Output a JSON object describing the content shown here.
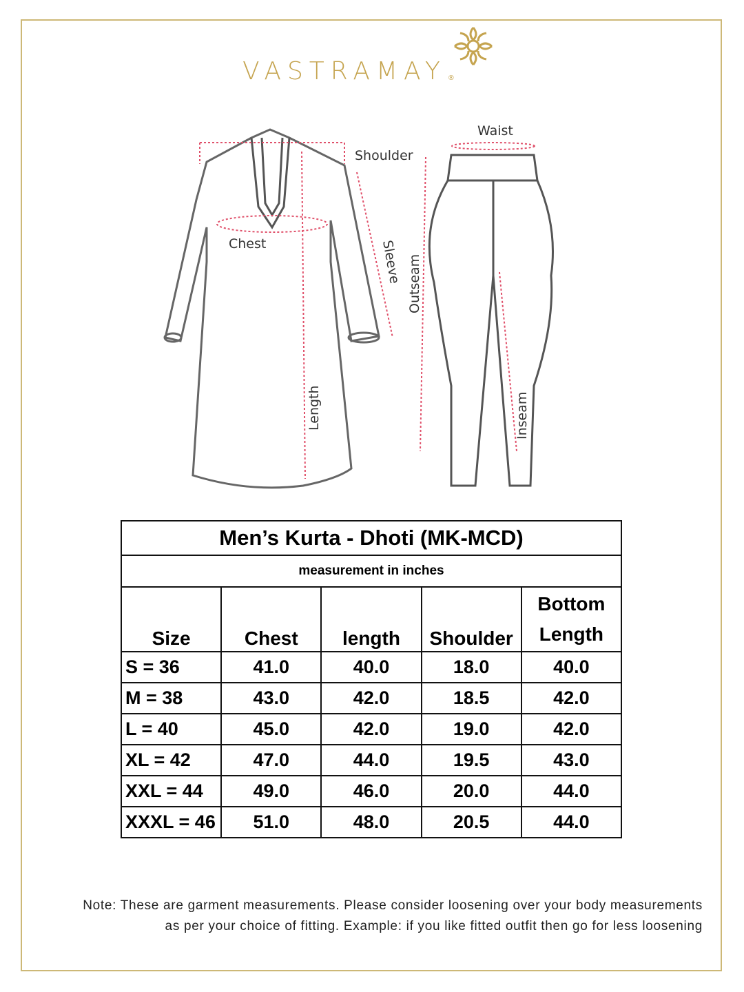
{
  "brand": {
    "name": "VASTRAMAY",
    "registered_mark": "®",
    "color": "#c5a44f"
  },
  "diagram": {
    "kurta_labels": {
      "shoulder": "Shoulder",
      "chest": "Chest",
      "sleeve": "Sleeve",
      "length": "Length"
    },
    "dhoti_labels": {
      "waist": "Waist",
      "outseam": "Outseam",
      "inseam": "Inseam"
    },
    "measure_line_color": "#e0506a"
  },
  "table": {
    "title": "Men’s Kurta - Dhoti (MK-MCD)",
    "subtitle": "measurement in inches",
    "headers": [
      "Size",
      "Chest",
      "length",
      "Shoulder",
      "Bottom Length"
    ],
    "rows": [
      [
        "S = 36",
        "41.0",
        "40.0",
        "18.0",
        "40.0"
      ],
      [
        "M = 38",
        "43.0",
        "42.0",
        "18.5",
        "42.0"
      ],
      [
        "L = 40",
        "45.0",
        "42.0",
        "19.0",
        "42.0"
      ],
      [
        "XL = 42",
        "47.0",
        "44.0",
        "19.5",
        "43.0"
      ],
      [
        "XXL = 44",
        "49.0",
        "46.0",
        "20.0",
        "44.0"
      ],
      [
        "XXXL = 46",
        "51.0",
        "48.0",
        "20.5",
        "44.0"
      ]
    ]
  },
  "note": {
    "line1": "Note: These are garment measurements. Please consider loosening over your body measurements",
    "line2": "as per your choice of fitting. Example: if you like fitted outfit then go for less loosening"
  }
}
